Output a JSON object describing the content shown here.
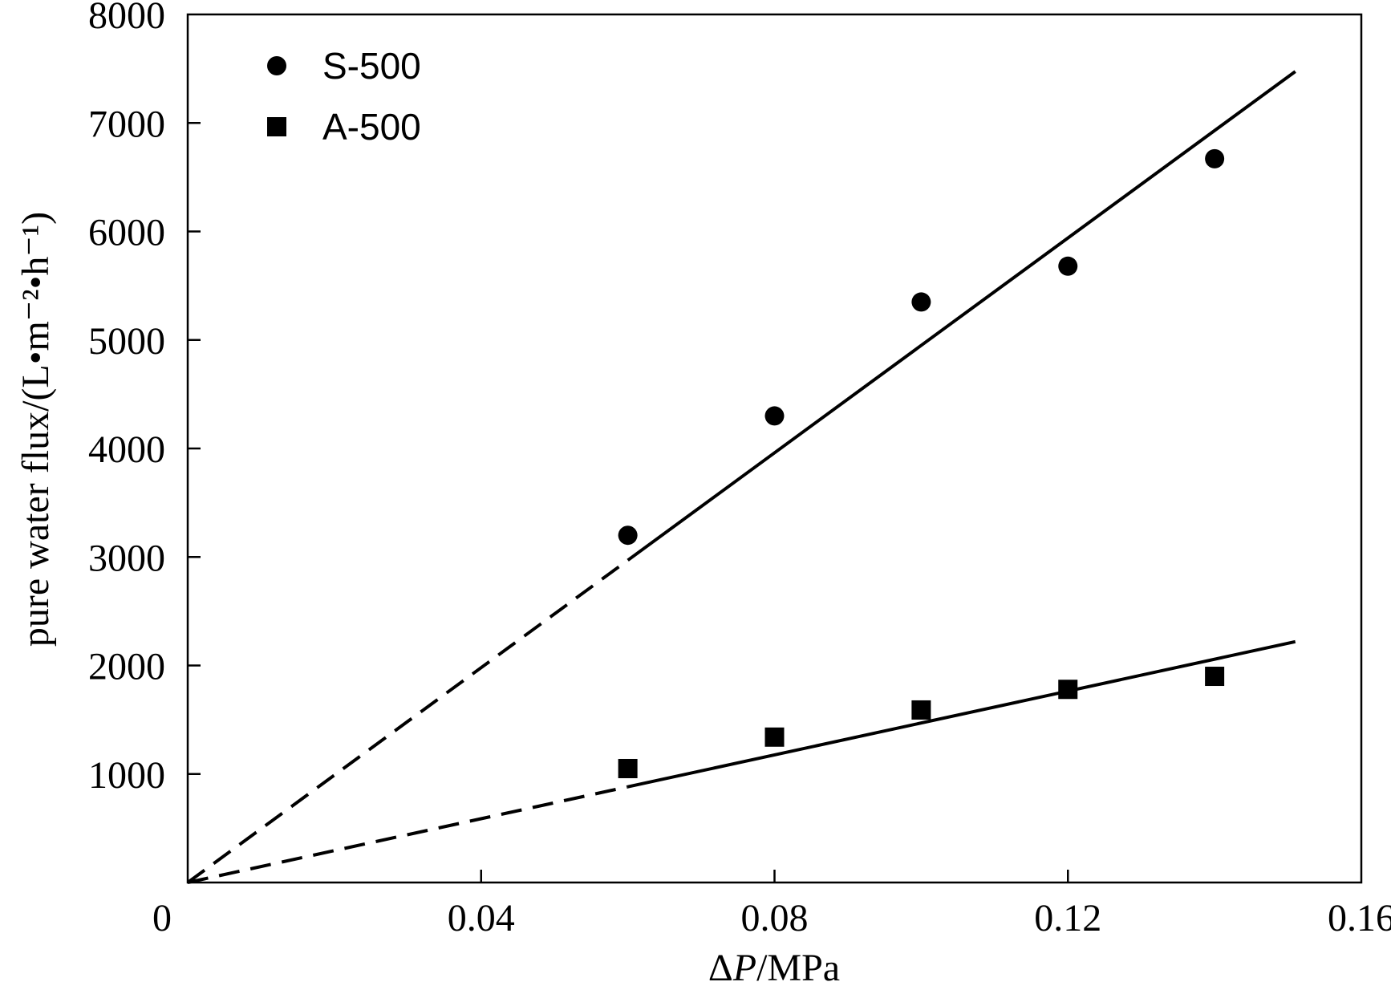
{
  "chart_data": {
    "type": "scatter",
    "xlabel": "ΔP/MPa",
    "xlabel_parts": {
      "delta": "Δ",
      "var": "P",
      "unit": "/MPa"
    },
    "ylabel": "pure water flux/(L•m⁻²•h⁻¹)",
    "xlim": [
      0,
      0.16
    ],
    "ylim": [
      0,
      8000
    ],
    "x_ticks": [
      0,
      0.04,
      0.08,
      0.12,
      0.16
    ],
    "x_tick_labels": [
      "0",
      "0.04",
      "0.08",
      "0.12",
      "0.16"
    ],
    "y_ticks": [
      1000,
      2000,
      3000,
      4000,
      5000,
      6000,
      7000,
      8000
    ],
    "y_tick_labels": [
      "1000",
      "2000",
      "3000",
      "4000",
      "5000",
      "6000",
      "7000",
      "8000"
    ],
    "grid": false,
    "legend_position": "top-left",
    "series": [
      {
        "name": "S-500",
        "marker": "circle",
        "color": "#000000",
        "x": [
          0.06,
          0.08,
          0.1,
          0.12,
          0.14
        ],
        "y": [
          3200,
          4300,
          5350,
          5680,
          6670
        ],
        "fit": {
          "slope": 49500,
          "intercept": 0,
          "x_range": [
            0,
            0.151
          ],
          "dashed_until": 0.06
        }
      },
      {
        "name": "A-500",
        "marker": "square",
        "color": "#000000",
        "x": [
          0.06,
          0.08,
          0.1,
          0.12,
          0.14
        ],
        "y": [
          1050,
          1340,
          1590,
          1780,
          1900
        ],
        "fit": {
          "slope": 14700,
          "intercept": 0,
          "x_range": [
            0,
            0.151
          ],
          "dashed_until": 0.06
        }
      }
    ]
  }
}
